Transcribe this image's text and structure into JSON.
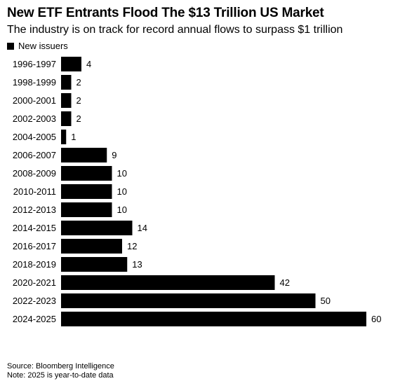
{
  "chart_data": {
    "type": "bar",
    "orientation": "horizontal",
    "title": "New ETF Entrants Flood The $13 Trillion US Market",
    "subtitle": "The industry is on track for record annual flows to surpass $1 trillion",
    "legend": {
      "label": "New issuers",
      "color": "#000000",
      "placement": "top-left"
    },
    "categories": [
      "1996-1997",
      "1998-1999",
      "2000-2001",
      "2002-2003",
      "2004-2005",
      "2006-2007",
      "2008-2009",
      "2010-2011",
      "2012-2013",
      "2014-2015",
      "2016-2017",
      "2018-2019",
      "2020-2021",
      "2022-2023",
      "2024-2025"
    ],
    "series": [
      {
        "name": "New issuers",
        "values": [
          4,
          2,
          2,
          2,
          1,
          9,
          10,
          10,
          10,
          14,
          12,
          13,
          42,
          50,
          60
        ]
      }
    ],
    "xlim": [
      0,
      60
    ],
    "grid": false,
    "bar_color": "#000000",
    "source": "Source: Bloomberg Intelligence",
    "note": "Note: 2025 is year-to-date data"
  }
}
